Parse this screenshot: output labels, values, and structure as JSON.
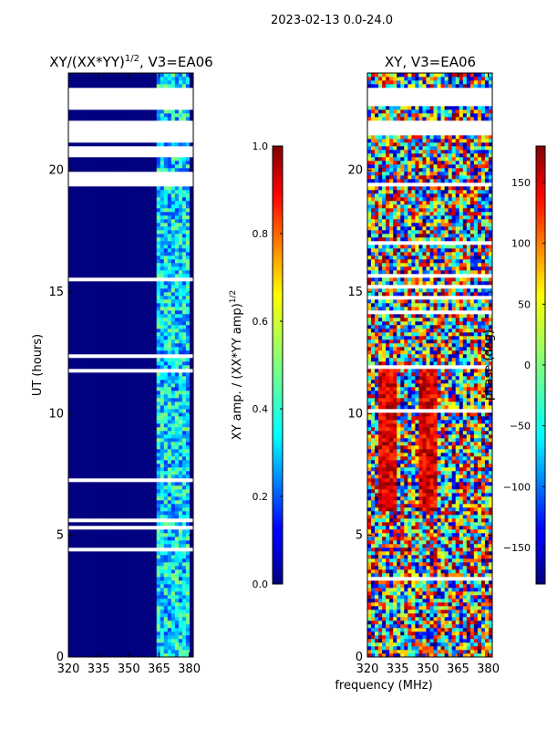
{
  "suptitle": "2023-02-13 0.0-24.0",
  "colors": {
    "background": "#ffffff",
    "frame": "#000000",
    "low": "#00007f",
    "high": "#7f0000"
  },
  "chart_data": [
    {
      "type": "heatmap",
      "title_base": "XY/(XX*YY)",
      "title_exp": "1/2",
      "title_suffix": ", V3=EA06",
      "xlabel": "",
      "ylabel": "UT (hours)",
      "xlim": [
        320,
        382
      ],
      "ylim": [
        0,
        24
      ],
      "xticks": [
        320,
        335,
        350,
        365,
        380
      ],
      "yticks": [
        0,
        5,
        10,
        15,
        20
      ],
      "colormap": "jet",
      "colorbar": {
        "label_base": "XY amp. / (XX*YY amp)",
        "label_exp": "1/2",
        "range": [
          0.0,
          1.0
        ],
        "ticks": [
          "0.0",
          "0.2",
          "0.4",
          "0.6",
          "0.8",
          "1.0"
        ]
      },
      "flagged_bands_hours": [
        [
          19.3,
          20.0
        ],
        [
          20.6,
          21.0
        ],
        [
          21.2,
          22.0
        ],
        [
          22.5,
          23.4
        ]
      ],
      "active_band_mhz": [
        364,
        380
      ],
      "typical_value_in_band": 0.35,
      "typical_value_outside_band": 0.0
    },
    {
      "type": "heatmap",
      "title": "XY, V3=EA06",
      "xlabel": "frequency (MHz)",
      "ylabel": "",
      "xlim": [
        320,
        382
      ],
      "ylim": [
        0,
        24
      ],
      "xticks": [
        320,
        335,
        350,
        365,
        380
      ],
      "yticks": [
        0,
        5,
        10,
        15,
        20
      ],
      "colormap": "jet",
      "colorbar": {
        "label": "phase (deg)",
        "range": [
          -180,
          180
        ],
        "ticks": [
          "150",
          "100",
          "50",
          "0",
          "−50",
          "−100",
          "−150"
        ]
      },
      "flagged_bands_hours": [
        [
          21.4,
          22.1
        ],
        [
          22.7,
          23.4
        ]
      ],
      "phase_pattern": "random, with red streaks near 330 and 350 MHz between 6 and 12 UT"
    }
  ]
}
